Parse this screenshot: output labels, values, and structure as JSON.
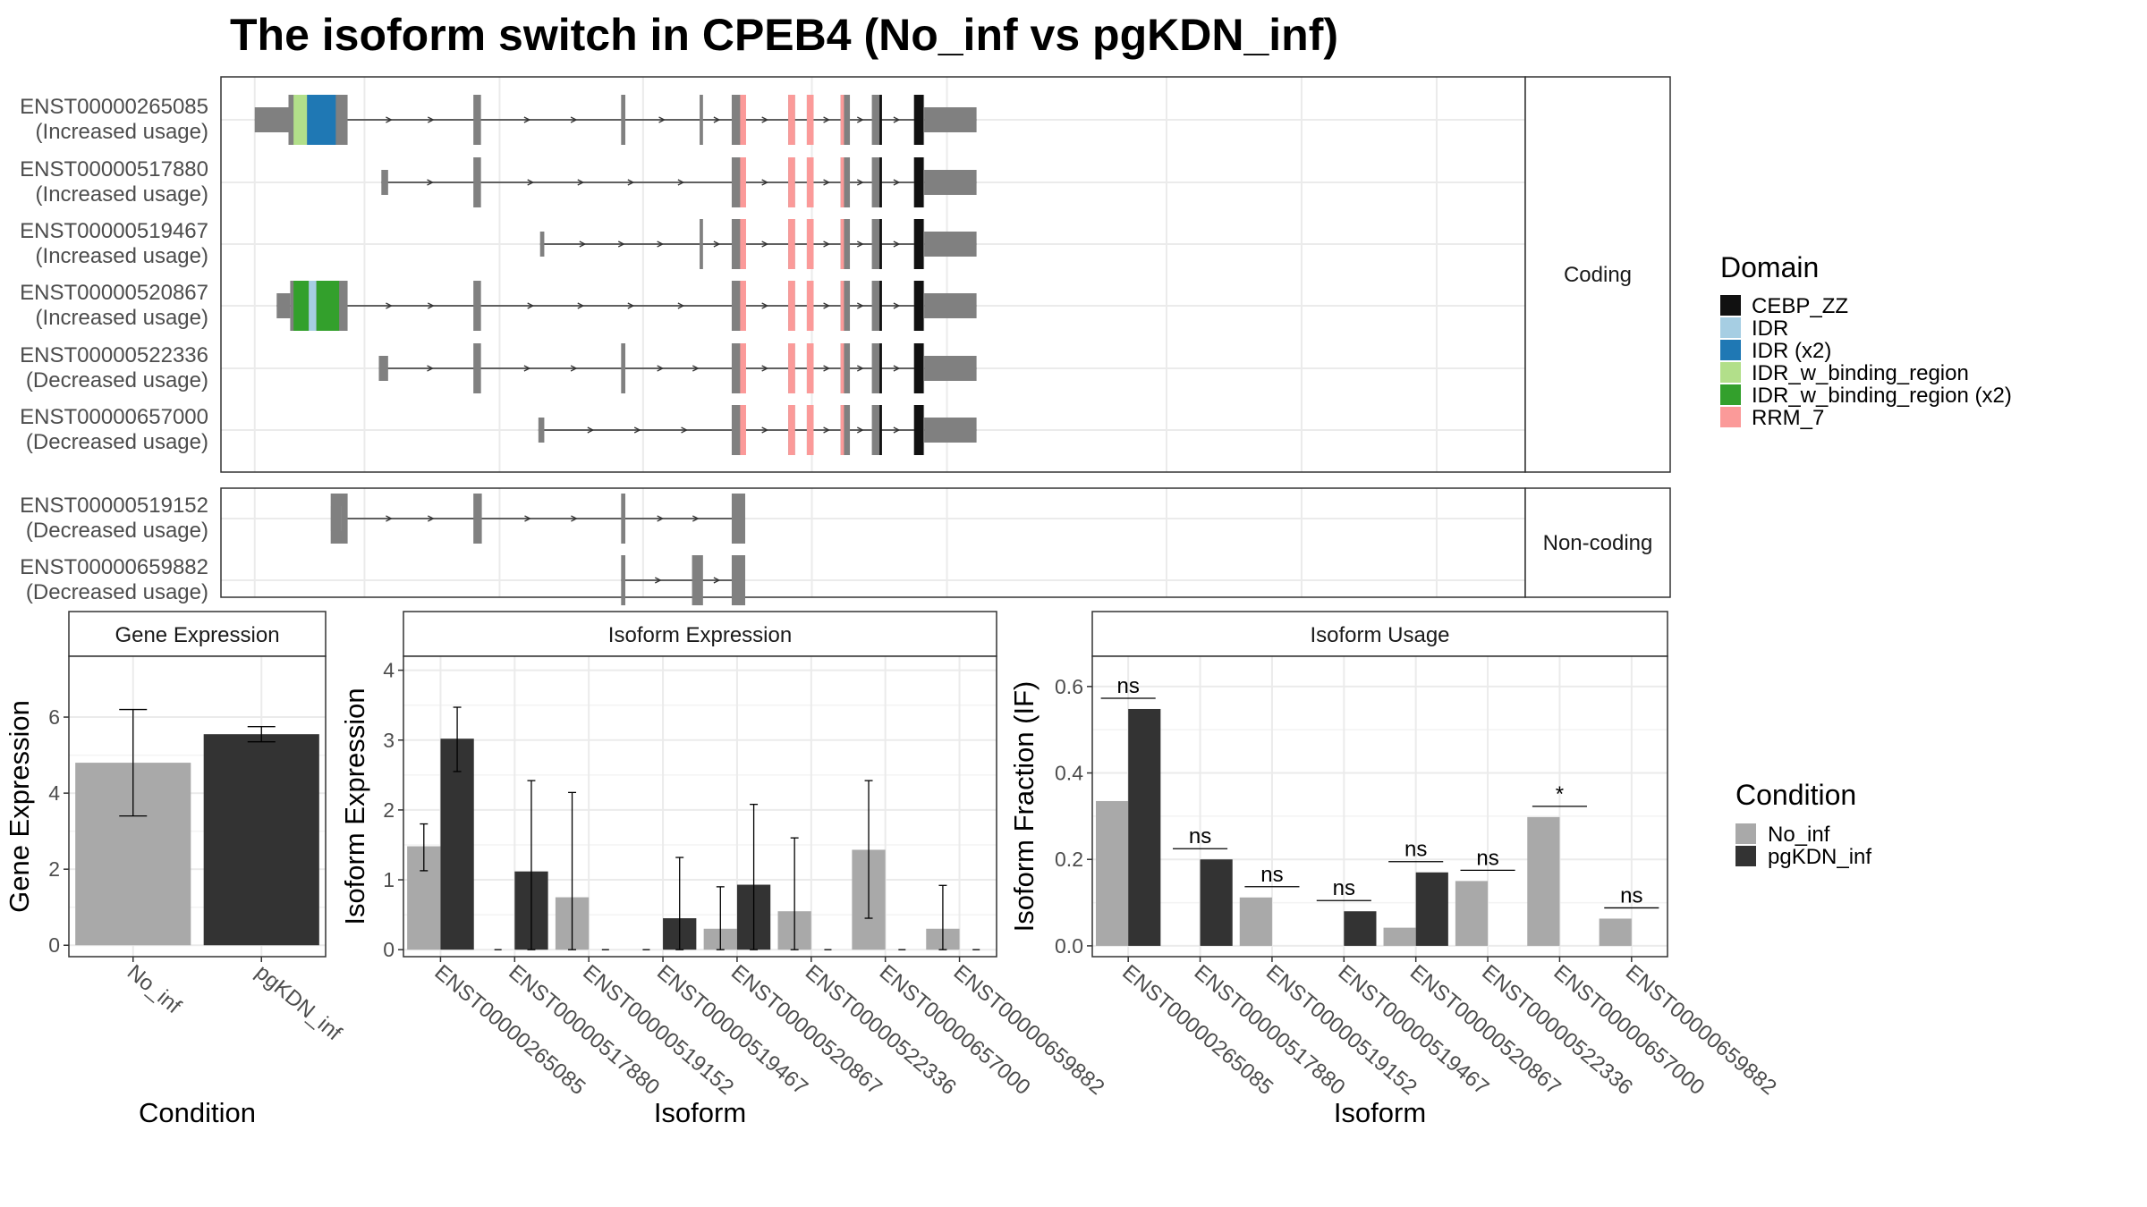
{
  "title": "The isoform switch in CPEB4 (No_inf vs pgKDN_inf)",
  "colors": {
    "exon": "#808080",
    "intron": "#333333",
    "CEBP_ZZ": "#111111",
    "IDR": "#a6cee3",
    "IDR (x2)": "#1f78b4",
    "IDR_w_binding_region": "#b2df8a",
    "IDR_w_binding_region (x2)": "#33a02c",
    "RRM_7": "#fb9a99",
    "No_inf": "#a9a9a9",
    "pgKDN_inf": "#333333"
  },
  "isoform_structure": {
    "facets": [
      "Coding",
      "Non-coding"
    ],
    "isoforms": [
      {
        "id": "ENST00000265085",
        "usage": "(Increased usage)",
        "facet": "Coding",
        "coding": true,
        "utr5": [
          200,
          240
        ],
        "cds": [
          [
            240,
            310
          ],
          [
            459,
            468
          ],
          [
            634,
            639
          ],
          [
            727,
            731
          ],
          [
            765,
            778
          ],
          [
            832,
            840
          ],
          [
            854,
            862
          ],
          [
            894,
            905
          ],
          [
            931,
            941
          ],
          [
            981,
            993
          ]
        ],
        "utr3": [
          993,
          1055
        ],
        "dom": [
          [
            "IDR_w_binding_region",
            246,
            262
          ],
          [
            "IDR (x2)",
            262,
            296
          ],
          [
            "RRM_7",
            775,
            782
          ],
          [
            "RRM_7",
            832,
            840
          ],
          [
            "RRM_7",
            854,
            862
          ],
          [
            "RRM_7",
            894,
            898
          ],
          [
            "CEBP_ZZ",
            940,
            943
          ],
          [
            "CEBP_ZZ",
            981,
            992
          ]
        ]
      },
      {
        "id": "ENST00000517880",
        "usage": "(Increased usage)",
        "facet": "Coding",
        "coding": true,
        "utr5": [
          350,
          358
        ],
        "cds": [
          [
            459,
            468
          ],
          [
            765,
            778
          ],
          [
            832,
            840
          ],
          [
            854,
            862
          ],
          [
            894,
            905
          ],
          [
            931,
            941
          ],
          [
            981,
            993
          ]
        ],
        "utr3": [
          993,
          1055
        ],
        "dom": [
          [
            "RRM_7",
            775,
            782
          ],
          [
            "RRM_7",
            832,
            840
          ],
          [
            "RRM_7",
            854,
            862
          ],
          [
            "RRM_7",
            894,
            898
          ],
          [
            "CEBP_ZZ",
            940,
            943
          ],
          [
            "CEBP_ZZ",
            981,
            992
          ]
        ]
      },
      {
        "id": "ENST00000519467",
        "usage": "(Increased usage)",
        "facet": "Coding",
        "coding": true,
        "utr5": [
          538,
          543
        ],
        "cds": [
          [
            727,
            731
          ],
          [
            765,
            778
          ],
          [
            832,
            840
          ],
          [
            854,
            862
          ],
          [
            894,
            905
          ],
          [
            931,
            941
          ],
          [
            981,
            993
          ]
        ],
        "utr3": [
          993,
          1055
        ],
        "dom": [
          [
            "RRM_7",
            775,
            782
          ],
          [
            "RRM_7",
            832,
            840
          ],
          [
            "RRM_7",
            854,
            862
          ],
          [
            "RRM_7",
            894,
            898
          ],
          [
            "CEBP_ZZ",
            940,
            943
          ],
          [
            "CEBP_ZZ",
            981,
            992
          ]
        ]
      },
      {
        "id": "ENST00000520867",
        "usage": "(Increased usage)",
        "facet": "Coding",
        "coding": true,
        "utr5": [
          226,
          242
        ],
        "cds": [
          [
            242,
            310
          ],
          [
            459,
            468
          ],
          [
            765,
            778
          ],
          [
            832,
            840
          ],
          [
            854,
            862
          ],
          [
            894,
            905
          ],
          [
            931,
            941
          ],
          [
            981,
            993
          ]
        ],
        "utr3": [
          993,
          1055
        ],
        "dom": [
          [
            "IDR_w_binding_region (x2)",
            246,
            264
          ],
          [
            "IDR",
            264,
            273
          ],
          [
            "IDR_w_binding_region (x2)",
            273,
            300
          ],
          [
            "RRM_7",
            775,
            782
          ],
          [
            "RRM_7",
            832,
            840
          ],
          [
            "RRM_7",
            854,
            862
          ],
          [
            "RRM_7",
            894,
            898
          ],
          [
            "CEBP_ZZ",
            940,
            943
          ],
          [
            "CEBP_ZZ",
            981,
            992
          ]
        ]
      },
      {
        "id": "ENST00000522336",
        "usage": "(Decreased usage)",
        "facet": "Coding",
        "coding": true,
        "utr5": [
          347,
          358
        ],
        "cds": [
          [
            459,
            468
          ],
          [
            634,
            639
          ],
          [
            765,
            778
          ],
          [
            832,
            840
          ],
          [
            854,
            862
          ],
          [
            894,
            905
          ],
          [
            931,
            941
          ],
          [
            981,
            993
          ]
        ],
        "utr3": [
          993,
          1055
        ],
        "dom": [
          [
            "RRM_7",
            775,
            782
          ],
          [
            "RRM_7",
            832,
            840
          ],
          [
            "RRM_7",
            854,
            862
          ],
          [
            "RRM_7",
            894,
            898
          ],
          [
            "CEBP_ZZ",
            940,
            943
          ],
          [
            "CEBP_ZZ",
            981,
            992
          ]
        ]
      },
      {
        "id": "ENST00000657000",
        "usage": "(Decreased usage)",
        "facet": "Coding",
        "coding": true,
        "utr5": [
          536,
          543
        ],
        "cds": [
          [
            765,
            778
          ],
          [
            832,
            840
          ],
          [
            854,
            862
          ],
          [
            894,
            905
          ],
          [
            931,
            941
          ],
          [
            981,
            993
          ]
        ],
        "utr3": [
          993,
          1055
        ],
        "dom": [
          [
            "RRM_7",
            775,
            782
          ],
          [
            "RRM_7",
            832,
            840
          ],
          [
            "RRM_7",
            854,
            862
          ],
          [
            "RRM_7",
            894,
            898
          ],
          [
            "CEBP_ZZ",
            940,
            943
          ],
          [
            "CEBP_ZZ",
            981,
            992
          ]
        ]
      },
      {
        "id": "ENST00000519152",
        "usage": "(Decreased usage)",
        "facet": "Non-coding",
        "coding": false,
        "exons": [
          [
            290,
            310
          ],
          [
            459,
            469
          ],
          [
            634,
            639
          ],
          [
            765,
            781
          ]
        ]
      },
      {
        "id": "ENST00000659882",
        "usage": "(Decreased usage)",
        "facet": "Non-coding",
        "coding": false,
        "exons": [
          [
            634,
            639
          ],
          [
            718,
            731
          ],
          [
            765,
            781
          ]
        ]
      }
    ],
    "legend_title": "Domain",
    "legend": [
      "CEBP_ZZ",
      "IDR",
      "IDR (x2)",
      "IDR_w_binding_region",
      "IDR_w_binding_region (x2)",
      "RRM_7"
    ]
  },
  "chart_data": [
    {
      "type": "bar",
      "title": "Gene Expression",
      "xlabel": "Condition",
      "ylabel": "Gene Expression",
      "categories": [
        "No_inf",
        "pgKDN_inf"
      ],
      "values": [
        4.8,
        5.55
      ],
      "err_low": [
        3.4,
        5.35
      ],
      "err_high": [
        6.2,
        5.75
      ],
      "ylim": [
        -0.3,
        7.6
      ],
      "yticks": [
        0,
        2,
        4,
        6
      ],
      "grid": true
    },
    {
      "type": "bar",
      "title": "Isoform Expression",
      "xlabel": "Isoform",
      "ylabel": "Isoform Expression",
      "categories": [
        "ENST00000265085",
        "ENST00000517880",
        "ENST00000519152",
        "ENST00000519467",
        "ENST00000520867",
        "ENST00000522336",
        "ENST00000657000",
        "ENST00000659882"
      ],
      "series": [
        {
          "name": "No_inf",
          "values": [
            1.48,
            0,
            0.75,
            0,
            0.3,
            0.55,
            1.43,
            0.3
          ],
          "err_low": [
            1.13,
            0,
            0,
            0,
            0,
            0,
            0.45,
            0
          ],
          "err_high": [
            1.8,
            0,
            2.25,
            0,
            0.9,
            1.6,
            2.42,
            0.92
          ]
        },
        {
          "name": "pgKDN_inf",
          "values": [
            3.02,
            1.12,
            0,
            0.45,
            0.93,
            0,
            0,
            0
          ],
          "err_low": [
            2.55,
            0,
            0,
            0,
            0,
            0,
            0,
            0
          ],
          "err_high": [
            3.47,
            2.42,
            0,
            1.32,
            2.08,
            0,
            0,
            0
          ]
        }
      ],
      "ylim": [
        -0.1,
        4.2
      ],
      "yticks": [
        0,
        1,
        2,
        3,
        4
      ],
      "grid": true
    },
    {
      "type": "bar",
      "title": "Isoform Usage",
      "xlabel": "Isoform",
      "ylabel": "Isoform Fraction (IF)",
      "categories": [
        "ENST00000265085",
        "ENST00000517880",
        "ENST00000519152",
        "ENST00000519467",
        "ENST00000520867",
        "ENST00000522336",
        "ENST00000657000",
        "ENST00000659882"
      ],
      "series": [
        {
          "name": "No_inf",
          "values": [
            0.335,
            0,
            0.112,
            0,
            0.042,
            0.15,
            0.298,
            0.063
          ]
        },
        {
          "name": "pgKDN_inf",
          "values": [
            0.548,
            0.2,
            0,
            0.08,
            0.17,
            0,
            0,
            0
          ]
        }
      ],
      "significance": [
        "ns",
        "ns",
        "ns",
        "ns",
        "ns",
        "ns",
        "*",
        "ns"
      ],
      "ylim": [
        -0.025,
        0.67
      ],
      "yticks": [
        0.0,
        0.2,
        0.4,
        0.6
      ],
      "ytick_labels": [
        "0.0",
        "0.2",
        "0.4",
        "0.6"
      ],
      "grid": true
    }
  ],
  "condition_legend": {
    "title": "Condition",
    "items": [
      "No_inf",
      "pgKDN_inf"
    ]
  }
}
